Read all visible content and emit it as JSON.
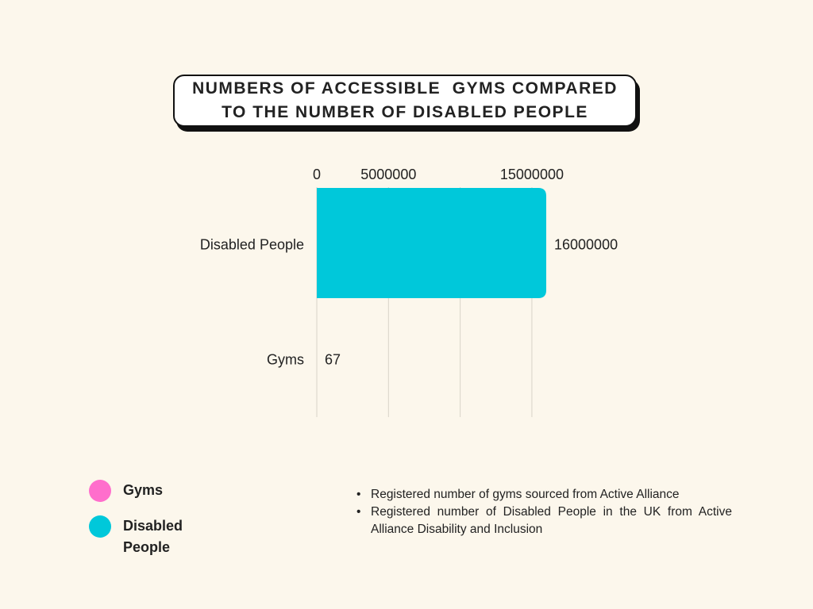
{
  "title": {
    "line1": "NUMBERS OF ACCESSIBLE  GYMS COMPARED",
    "line2": "TO THE NUMBER OF DISABLED PEOPLE"
  },
  "chart_data": {
    "type": "bar",
    "orientation": "horizontal",
    "title": "NUMBERS OF ACCESSIBLE  GYMS COMPARED TO THE NUMBER OF DISABLED PEOPLE",
    "categories": [
      "Disabled People",
      "Gyms"
    ],
    "values": [
      16000000,
      67
    ],
    "value_labels": [
      "16000000",
      "67"
    ],
    "colors": [
      "#00c8da",
      "#ff6ecc"
    ],
    "xlim": [
      0,
      16000000
    ],
    "x_ticks": [
      {
        "value": 0,
        "label": "0"
      },
      {
        "value": 5000000,
        "label": "5000000"
      },
      {
        "value": 15000000,
        "label": "15000000"
      }
    ],
    "gridlines": [
      0,
      5000000,
      10000000,
      15000000
    ],
    "axis_position": "top",
    "grid": true,
    "legend_position": "bottom-left"
  },
  "legend": {
    "items": [
      {
        "label": "Gyms",
        "color": "#ff6ecc"
      },
      {
        "label": "Disabled People",
        "color": "#00c8da"
      }
    ]
  },
  "notes": [
    "Registered number of gyms sourced from Active Alliance",
    "Registered number of Disabled People in the UK from Active Alliance Disability and Inclusion"
  ]
}
